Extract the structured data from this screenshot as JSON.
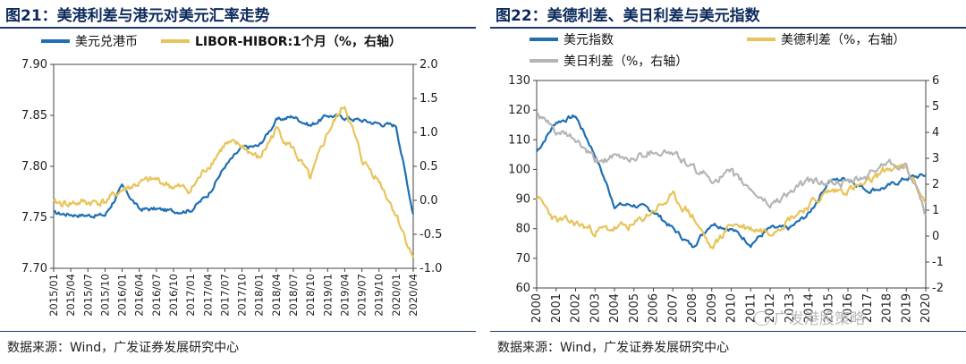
{
  "charts": {
    "left": {
      "title": "图21：美港利差与港元对美元汇率走势",
      "source": "数据来源：Wind，广发证券发展研究中心"
    },
    "right": {
      "title": "图22：美德利差、美日利差与美元指数",
      "source": "数据来源：Wind，广发证券发展研究中心",
      "watermark": "广发港股策略"
    }
  },
  "colors": {
    "blue": "#1f6fb2",
    "yellow": "#e8c45a",
    "gray": "#b5b5b5"
  },
  "chart_data": [
    {
      "type": "line",
      "title": "美港利差与港元对美元汇率走势",
      "categories": [
        "2015/01",
        "2015/04",
        "2015/07",
        "2015/10",
        "2016/01",
        "2016/04",
        "2016/07",
        "2016/10",
        "2017/01",
        "2017/04",
        "2017/07",
        "2017/10",
        "2018/01",
        "2018/04",
        "2018/07",
        "2018/10",
        "2019/01",
        "2019/04",
        "2019/07",
        "2019/10",
        "2020/01",
        "2020/04"
      ],
      "ylim": [
        7.7,
        7.9
      ],
      "y_ticks": [
        "7.70",
        "7.75",
        "7.80",
        "7.85",
        "7.90"
      ],
      "y2lim": [
        -1.0,
        2.0
      ],
      "y2_ticks": [
        "-1.0",
        "-0.5",
        "0.0",
        "0.5",
        "1.0",
        "1.5",
        "2.0"
      ],
      "series": [
        {
          "name": "美元兑港币",
          "axis": "left",
          "color": "#1f6fb2",
          "values": [
            7.754,
            7.753,
            7.752,
            7.752,
            7.78,
            7.758,
            7.758,
            7.756,
            7.757,
            7.772,
            7.8,
            7.818,
            7.82,
            7.845,
            7.849,
            7.84,
            7.85,
            7.848,
            7.845,
            7.842,
            7.84,
            7.753
          ]
        },
        {
          "name": "LIBOR-HIBOR:1个月（%，右轴）",
          "axis": "right",
          "color": "#e8c45a",
          "values": [
            -0.05,
            -0.04,
            -0.03,
            -0.02,
            0.15,
            0.25,
            0.3,
            0.2,
            0.15,
            0.5,
            0.82,
            0.8,
            0.6,
            1.05,
            0.75,
            0.3,
            1.0,
            1.4,
            0.6,
            0.3,
            -0.2,
            -0.85
          ]
        }
      ]
    },
    {
      "type": "line",
      "title": "美德利差、美日利差与美元指数",
      "categories": [
        "2000",
        "2001",
        "2002",
        "2003",
        "2004",
        "2005",
        "2006",
        "2007",
        "2008",
        "2009",
        "2010",
        "2011",
        "2012",
        "2013",
        "2014",
        "2015",
        "2016",
        "2017",
        "2018",
        "2019",
        "2020"
      ],
      "ylim": [
        60,
        130
      ],
      "y_ticks": [
        "60",
        "70",
        "80",
        "90",
        "100",
        "110",
        "120",
        "130"
      ],
      "y2lim": [
        -2,
        6
      ],
      "y2_ticks": [
        "-2",
        "-1",
        "0",
        "1",
        "2",
        "3",
        "4",
        "5",
        "6"
      ],
      "series": [
        {
          "name": "美元指数",
          "axis": "left",
          "color": "#1f6fb2",
          "values": [
            106,
            116,
            118,
            105,
            88,
            88,
            86,
            80,
            74,
            82,
            80,
            75,
            80,
            80,
            85,
            96,
            97,
            93,
            94,
            97,
            98
          ]
        },
        {
          "name": "美德利差（%，右轴）",
          "axis": "right",
          "color": "#e8c45a",
          "values": [
            1.5,
            0.6,
            0.5,
            0.2,
            0.3,
            0.4,
            1.0,
            1.5,
            0.8,
            -0.5,
            0.5,
            0.3,
            0.2,
            0.7,
            1.2,
            1.7,
            1.8,
            2.0,
            2.6,
            2.6,
            1.3
          ]
        },
        {
          "name": "美日利差（%，右轴）",
          "axis": "right",
          "color": "#b5b5b5",
          "values": [
            4.7,
            4.0,
            3.7,
            2.9,
            3.0,
            3.0,
            3.3,
            3.2,
            2.6,
            2.2,
            2.4,
            1.8,
            1.2,
            1.7,
            2.1,
            2.1,
            2.0,
            2.3,
            2.9,
            2.7,
            0.8
          ]
        }
      ]
    }
  ]
}
